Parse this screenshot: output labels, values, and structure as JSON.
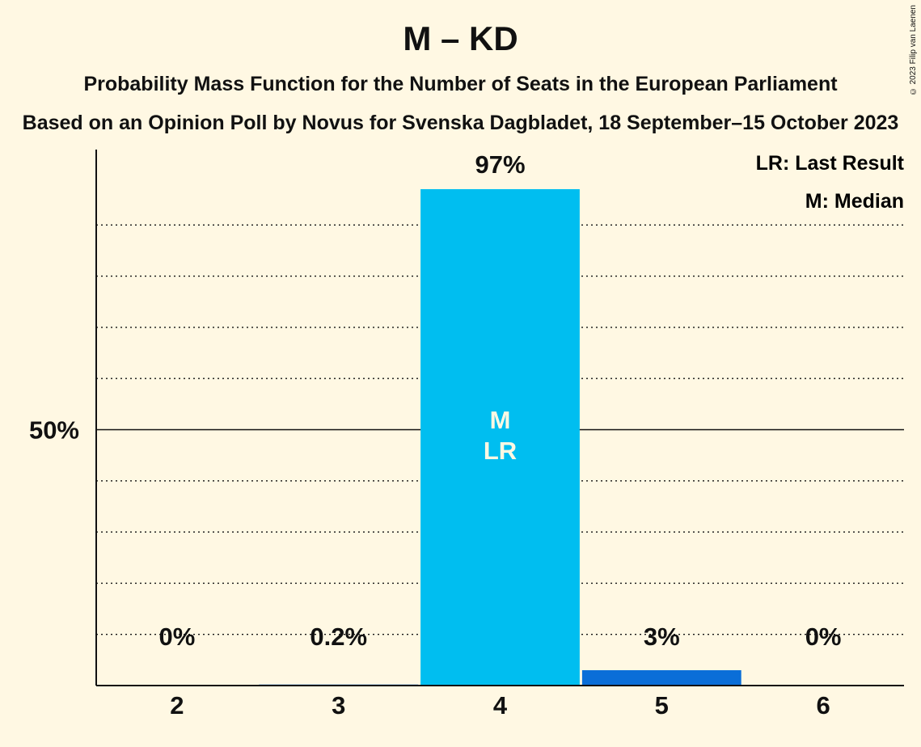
{
  "header": {
    "title": "M – KD",
    "subtitle_1": "Probability Mass Function for the Number of Seats in the European Parliament",
    "subtitle_2": "Based on an Opinion Poll by Novus for Svenska Dagbladet, 18 September–15 October 2023",
    "copyright": "© 2023 Filip van Laenen"
  },
  "legend": {
    "last_result": "LR: Last Result",
    "median": "M: Median"
  },
  "chart_data": {
    "type": "bar",
    "categories": [
      "2",
      "3",
      "4",
      "5",
      "6"
    ],
    "values": [
      0,
      0.2,
      97,
      3,
      0
    ],
    "data_labels": [
      "0%",
      "0.2%",
      "97%",
      "3%",
      "0%"
    ],
    "bar_markers": [
      "",
      "",
      "M\nLR",
      "",
      ""
    ],
    "ylim": [
      0,
      100
    ],
    "ytick_label": "50%",
    "ytick_value": 50,
    "grid": "dotted",
    "legend_placement": "top-right",
    "colors": {
      "median_bar": "#00BEF0",
      "other_bar": "#0A6ED8",
      "background": "#FFF8E3"
    }
  }
}
